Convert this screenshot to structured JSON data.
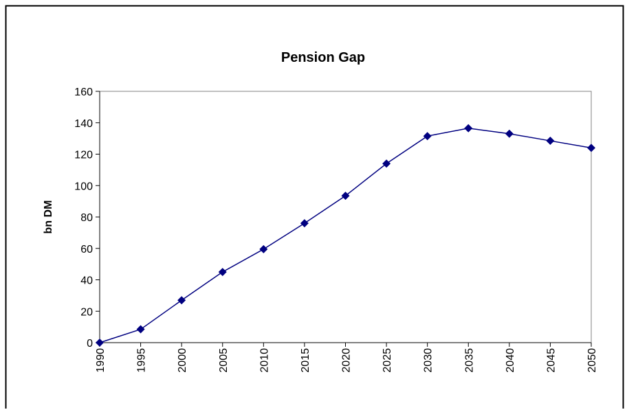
{
  "chart_data": {
    "type": "line",
    "title": "Pension Gap",
    "y_label": "bn DM",
    "x": [
      1990,
      1995,
      2000,
      2005,
      2010,
      2015,
      2020,
      2025,
      2030,
      2035,
      2040,
      2045,
      2050
    ],
    "series": [
      {
        "name": "Pension Gap",
        "color": "#000080",
        "values": [
          0,
          8.5,
          27,
          45,
          59.5,
          76,
          93.5,
          114,
          131.5,
          136.5,
          133,
          128.5,
          124
        ]
      }
    ],
    "xlim": [
      1990,
      2050
    ],
    "xticks": [
      1990,
      1995,
      2000,
      2005,
      2010,
      2015,
      2020,
      2025,
      2030,
      2035,
      2040,
      2045,
      2050
    ],
    "ylim": [
      0,
      160
    ],
    "yticks": [
      0,
      20,
      40,
      60,
      80,
      100,
      120,
      140,
      160
    ],
    "grid": false,
    "legend": false
  }
}
